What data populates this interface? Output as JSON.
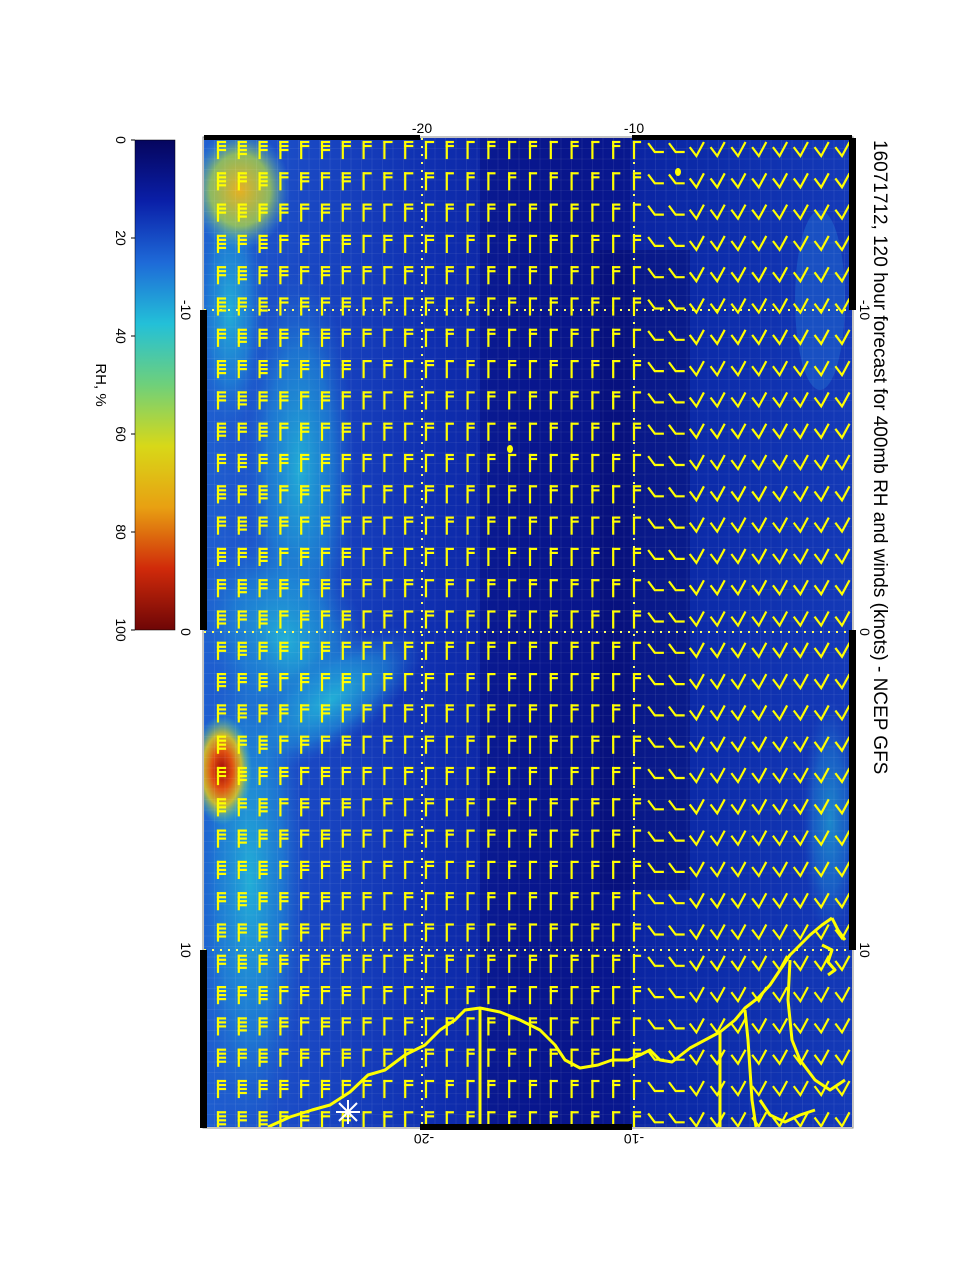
{
  "title": "16071712, 120 hour forecast for 400mb RH and winds (knots) - NCEP GFS",
  "colorbar": {
    "label": "RH, %",
    "ticks": [
      "0",
      "20",
      "40",
      "60",
      "80",
      "100"
    ],
    "stops": [
      "#05055e",
      "#0a1fa8",
      "#1e6ad8",
      "#23c0d8",
      "#6fd07a",
      "#d8d818",
      "#e8a012",
      "#d02a0a",
      "#6e0606"
    ]
  },
  "map": {
    "top_axis_ticks": [
      "-20",
      "-10"
    ],
    "bottom_axis_ticks": [
      "-20",
      "-10"
    ],
    "left_axis_ticks": [
      "-10",
      "0",
      "10"
    ],
    "right_axis_ticks": [
      "-10",
      "0",
      "10"
    ],
    "barb_color": "#ffff00",
    "coast_color": "#ffff00",
    "grid_color": "#ffff66",
    "marker_color": "#ffffff"
  }
}
